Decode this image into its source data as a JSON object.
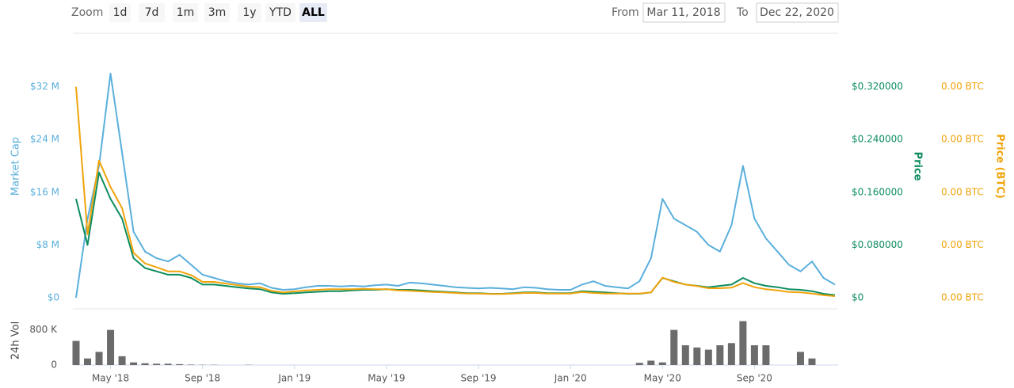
{
  "controls": {
    "zoom_label": "Zoom",
    "zoom_buttons": [
      "1d",
      "7d",
      "1m",
      "3m",
      "1y",
      "YTD",
      "ALL"
    ],
    "selected": 6,
    "from_label": "From",
    "from": "Mar 11, 2018",
    "to_label": "To",
    "to": "Dec 22, 2020"
  },
  "chart_data": {
    "type": "line",
    "categories": [
      null,
      null,
      null,
      "May '18",
      null,
      null,
      null,
      null,
      null,
      null,
      null,
      "Sep '18",
      null,
      null,
      null,
      null,
      null,
      null,
      null,
      "Jan '19",
      null,
      null,
      null,
      null,
      null,
      null,
      null,
      "May '19",
      null,
      null,
      null,
      null,
      null,
      null,
      null,
      "Sep '19",
      null,
      null,
      null,
      null,
      null,
      null,
      null,
      "Jan '20",
      null,
      null,
      null,
      null,
      null,
      null,
      null,
      "May '20",
      null,
      null,
      null,
      null,
      null,
      null,
      null,
      "Sep '20",
      null,
      null,
      null,
      null,
      null,
      null,
      null
    ],
    "ylim": [
      0,
      40000000
    ],
    "yticks": [
      {
        "value": 0,
        "label": "$0"
      },
      {
        "value": 8000000,
        "label": "$8 M"
      },
      {
        "value": 16000000,
        "label": "$16 M"
      },
      {
        "value": 24000000,
        "label": "$24 M"
      },
      {
        "value": 32000000,
        "label": "$32 M"
      }
    ],
    "y2lim": [
      0,
      0.4
    ],
    "y2ticks": [
      {
        "value": 0,
        "label": "$0"
      },
      {
        "value": 0.08,
        "label": "$0.080000"
      },
      {
        "value": 0.16,
        "label": "$0.160000"
      },
      {
        "value": 0.24,
        "label": "$0.240000"
      },
      {
        "value": 0.32,
        "label": "$0.320000"
      }
    ],
    "y3lim": [
      0,
      5e-05
    ],
    "y3ticks": [
      {
        "value": 0,
        "label": "0.00 BTC"
      },
      {
        "value": 1e-05,
        "label": "0.00 BTC"
      },
      {
        "value": 2e-05,
        "label": "0.00 BTC"
      },
      {
        "value": 3e-05,
        "label": "0.00 BTC"
      },
      {
        "value": 4e-05,
        "label": "0.00 BTC"
      }
    ],
    "grid": false,
    "series": [
      {
        "name": "Market Cap",
        "color": "#5aafdc",
        "axis": "y",
        "values": [
          0,
          12000000,
          20000000,
          34000000,
          22000000,
          10000000,
          7000000,
          6000000,
          5500000,
          6500000,
          5000000,
          3500000,
          3000000,
          2500000,
          2200000,
          2000000,
          2200000,
          1500000,
          1200000,
          1300000,
          1600000,
          1800000,
          1800000,
          1700000,
          1800000,
          1700000,
          1900000,
          2000000,
          1800000,
          2300000,
          2200000,
          2000000,
          1800000,
          1600000,
          1500000,
          1400000,
          1500000,
          1400000,
          1300000,
          1600000,
          1500000,
          1300000,
          1200000,
          1200000,
          2000000,
          2500000,
          1800000,
          1600000,
          1400000,
          2500000,
          6000000,
          15000000,
          12000000,
          11000000,
          10000000,
          8000000,
          7000000,
          11000000,
          20000000,
          12000000,
          9000000,
          7000000,
          5000000,
          4000000,
          5500000,
          3000000,
          2000000
        ]
      },
      {
        "name": "Price",
        "color": "#0d8d5e",
        "axis": "y2",
        "values": [
          0.15,
          0.08,
          0.19,
          0.15,
          0.12,
          0.06,
          0.045,
          0.04,
          0.035,
          0.035,
          0.03,
          0.02,
          0.02,
          0.018,
          0.016,
          0.014,
          0.013,
          0.008,
          0.006,
          0.007,
          0.008,
          0.009,
          0.01,
          0.01,
          0.011,
          0.012,
          0.012,
          0.013,
          0.012,
          0.012,
          0.011,
          0.01,
          0.009,
          0.008,
          0.007,
          0.007,
          0.006,
          0.006,
          0.007,
          0.008,
          0.008,
          0.007,
          0.007,
          0.007,
          0.01,
          0.009,
          0.008,
          0.007,
          0.006,
          0.006,
          0.008,
          0.03,
          0.025,
          0.02,
          0.018,
          0.016,
          0.018,
          0.02,
          0.03,
          0.022,
          0.018,
          0.016,
          0.013,
          0.012,
          0.01,
          0.006,
          0.004
        ]
      },
      {
        "name": "Price (BTC)",
        "color": "#f0a30a",
        "axis": "y3",
        "values": [
          4e-05,
          1.2e-05,
          2.6e-05,
          2.1e-05,
          1.7e-05,
          8.5e-06,
          6.5e-06,
          5.8e-06,
          5e-06,
          5e-06,
          4.3e-06,
          3e-06,
          3e-06,
          2.7e-06,
          2.4e-06,
          2.1e-06,
          2e-06,
          1.3e-06,
          1e-06,
          1.2e-06,
          1.4e-06,
          1.5e-06,
          1.6e-06,
          1.6e-06,
          1.6e-06,
          1.7e-06,
          1.6e-06,
          1.6e-06,
          1.4e-06,
          1.3e-06,
          1.2e-06,
          1.1e-06,
          1e-06,
          9e-07,
          8e-07,
          8e-07,
          7e-07,
          7e-07,
          8e-07,
          9e-07,
          9e-07,
          8e-07,
          8e-07,
          8e-07,
          1.1e-06,
          9e-07,
          8e-07,
          8e-07,
          8e-07,
          8e-07,
          1e-06,
          3.8e-06,
          3e-06,
          2.5e-06,
          2.2e-06,
          1.8e-06,
          1.8e-06,
          1.9e-06,
          2.8e-06,
          2e-06,
          1.6e-06,
          1.4e-06,
          1.1e-06,
          1e-06,
          8e-07,
          5e-07,
          3e-07
        ]
      }
    ],
    "volume": {
      "type": "bar",
      "name": "24h Vol",
      "color": "#6b6b6b",
      "ylim": [
        0,
        1100000
      ],
      "yticks": [
        0,
        {
          "value": 800000,
          "label": "800 K"
        }
      ],
      "values": [
        550000,
        150000,
        300000,
        800000,
        200000,
        60000,
        40000,
        30000,
        30000,
        20000,
        10000,
        5000,
        5000,
        0,
        0,
        5000,
        0,
        0,
        0,
        0,
        0,
        0,
        0,
        0,
        0,
        0,
        0,
        0,
        0,
        0,
        0,
        0,
        0,
        0,
        0,
        0,
        0,
        0,
        0,
        0,
        0,
        0,
        0,
        0,
        0,
        0,
        0,
        0,
        0,
        50000,
        100000,
        60000,
        800000,
        450000,
        400000,
        350000,
        450000,
        500000,
        1000000,
        450000,
        450000,
        0,
        0,
        300000,
        150000,
        0,
        0
      ]
    }
  }
}
